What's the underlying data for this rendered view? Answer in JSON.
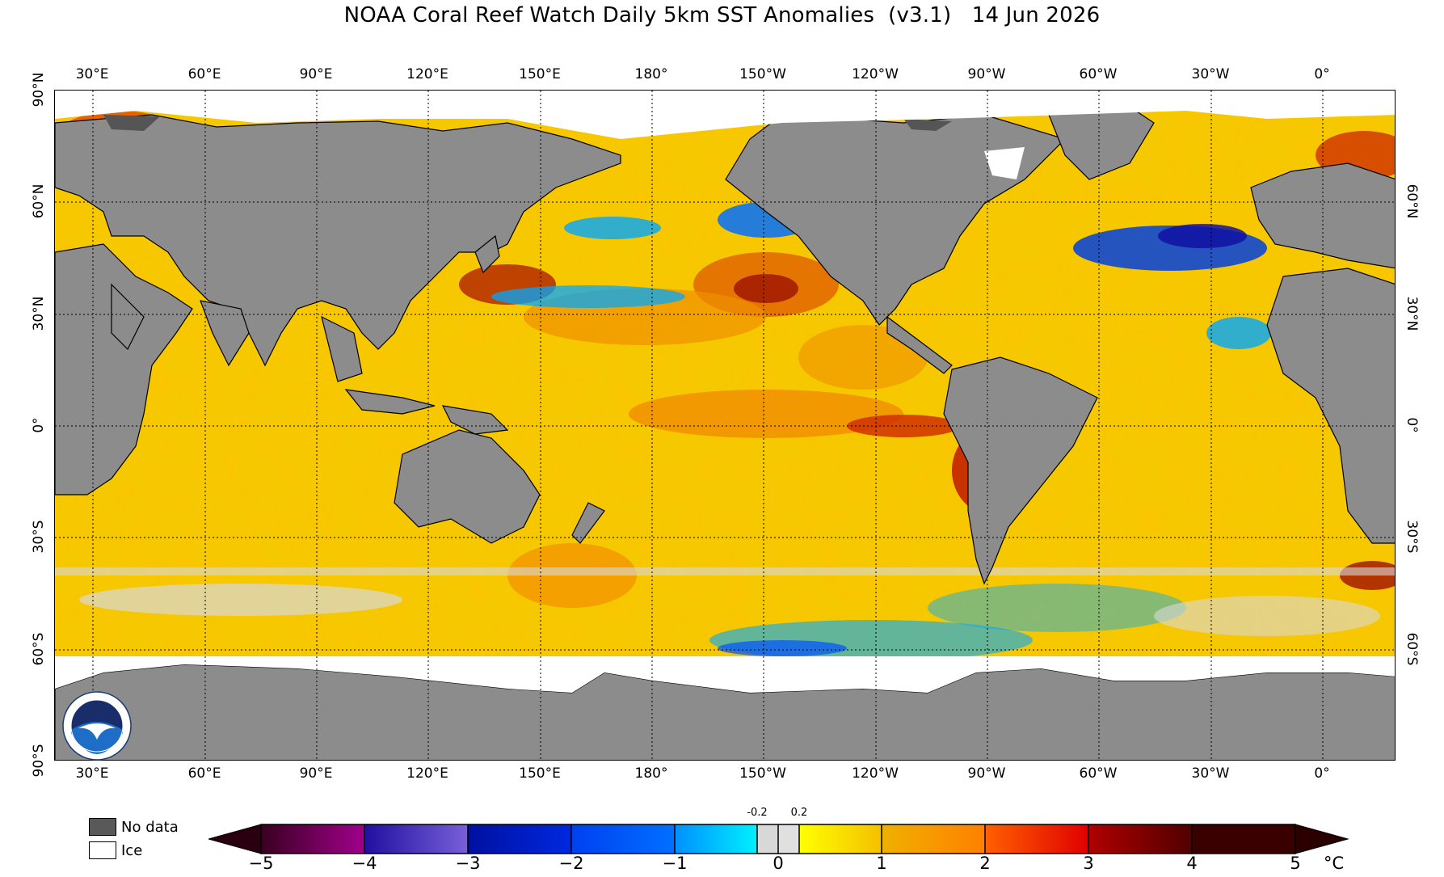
{
  "title": "NOAA Coral Reef Watch Daily 5km SST Anomalies  (v3.1)   14 Jun 2026",
  "map": {
    "top_longitudes": [
      "30°E",
      "60°E",
      "90°E",
      "120°E",
      "150°E",
      "180°",
      "150°W",
      "120°W",
      "90°W",
      "60°W",
      "30°W",
      "0°"
    ],
    "bottom_longitudes": [
      "30°E",
      "60°E",
      "90°E",
      "120°E",
      "150°E",
      "180°",
      "150°W",
      "120°W",
      "90°W",
      "60°W",
      "30°W",
      "0°"
    ],
    "left_latitudes": [
      "90°N",
      "60°N",
      "30°N",
      "0°",
      "30°S",
      "60°S",
      "90°S"
    ],
    "right_latitudes": [
      "60°N",
      "30°N",
      "0°",
      "30°S",
      "60°S"
    ],
    "colors": {
      "land": "#8c8c8c",
      "land_no_data": "#555555",
      "ice": "#ffffff",
      "ocean_base": "#f5c800"
    }
  },
  "legend": {
    "no_data_label": "No data",
    "ice_label": "Ice",
    "no_data_color": "#595959",
    "ice_color": "#ffffff"
  },
  "colorbar": {
    "ticks": [
      "−5",
      "−4",
      "−3",
      "−2",
      "−1",
      "0",
      "1",
      "2",
      "3",
      "4",
      "5"
    ],
    "small_ticks": [
      "-0.2",
      "0.2"
    ],
    "unit": "°C",
    "colors": [
      "#2a0010",
      "#5a0050",
      "#7a007a",
      "#3010a0",
      "#0018c0",
      "#0050ff",
      "#00a8ff",
      "#00e8ff",
      "#d8d8d8",
      "#ffff00",
      "#f5b800",
      "#ff7800",
      "#ff1a00",
      "#8b0000",
      "#2a0000"
    ]
  }
}
